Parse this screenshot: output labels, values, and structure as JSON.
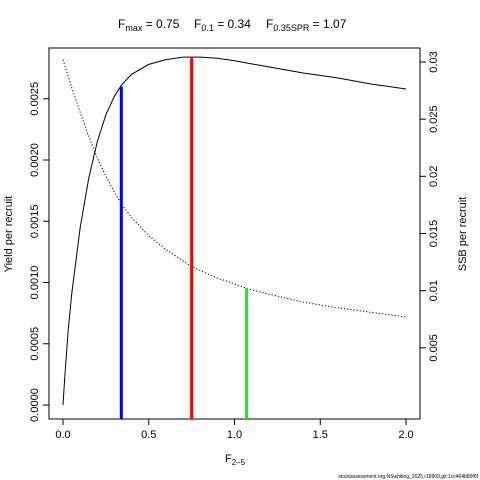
{
  "chart_data": {
    "type": "line",
    "title_parts": {
      "fmax_base": "F",
      "fmax_sub": "max",
      "fmax_value": " = 0.75",
      "f01_base": "F",
      "f01_sub": "0.1",
      "f01_value": " = 0.34",
      "fspr_base": "F",
      "fspr_sub": "0.35SPR",
      "fspr_value": " = 1.07"
    },
    "xlabel_base": "F",
    "xlabel_sub": "2–5",
    "ylabel_left": "Yield per recruit",
    "ylabel_right": "SSB per recruit",
    "xlim": [
      0,
      2
    ],
    "ylim_left": [
      0,
      0.0028
    ],
    "ylim_right": [
      0,
      0.03
    ],
    "x_ticks": [
      0,
      0.5,
      1,
      1.5,
      2
    ],
    "x_tick_labels": [
      "0.0",
      "0.5",
      "1.0",
      "1.5",
      "2.0"
    ],
    "y_left_ticks": [
      0,
      0.0005,
      0.001,
      0.0015,
      0.002,
      0.0025
    ],
    "y_left_tick_labels": [
      "0.0000",
      "0.0005",
      "0.0010",
      "0.0015",
      "0.0020",
      "0.0025"
    ],
    "y_right_ticks": [
      0.005,
      0.01,
      0.015,
      0.02,
      0.025,
      0.03
    ],
    "y_right_tick_labels": [
      "0.005",
      "0.01",
      "0.015",
      "0.02",
      "0.025",
      "0.03"
    ],
    "series": [
      {
        "axis": "left",
        "style": "solid",
        "x": [
          0,
          0.01,
          0.03,
          0.05,
          0.1,
          0.15,
          0.2,
          0.25,
          0.3,
          0.34,
          0.4,
          0.5,
          0.6,
          0.7,
          0.75,
          0.8,
          0.9,
          1.0,
          1.2,
          1.4,
          1.6,
          1.8,
          2.0
        ],
        "values": [
          0,
          0.00022,
          0.0006,
          0.0009,
          0.00145,
          0.00185,
          0.00215,
          0.00237,
          0.00252,
          0.00261,
          0.0027,
          0.00278,
          0.00282,
          0.00284,
          0.00284,
          0.00284,
          0.00283,
          0.00281,
          0.00276,
          0.00271,
          0.00267,
          0.00262,
          0.00258
        ]
      },
      {
        "axis": "right",
        "style": "dotted",
        "x": [
          0,
          0.05,
          0.1,
          0.15,
          0.2,
          0.25,
          0.3,
          0.34,
          0.4,
          0.5,
          0.6,
          0.75,
          0.9,
          1.0,
          1.07,
          1.2,
          1.4,
          1.6,
          1.8,
          2.0
        ],
        "values": [
          0.0302,
          0.0278,
          0.0256,
          0.0235,
          0.0216,
          0.02,
          0.0186,
          0.0176,
          0.0164,
          0.0148,
          0.0136,
          0.0121,
          0.0111,
          0.0106,
          0.0102,
          0.0097,
          0.009,
          0.0085,
          0.0081,
          0.0077
        ]
      }
    ],
    "reference_lines": [
      {
        "name": "F0.1",
        "x": 0.34,
        "y_top": 0.0026,
        "color": "#0000ff"
      },
      {
        "name": "Fmax",
        "x": 0.75,
        "y_top": 0.00284,
        "color": "#ff0000"
      },
      {
        "name": "F0.35SPR",
        "x": 1.07,
        "y_top_right": 0.0102,
        "color": "#00ff00"
      }
    ],
    "grid": false
  },
  "footnote": "stockassessment.org,NSwhiting_2025,r18909,git:1cc464b80f6f"
}
